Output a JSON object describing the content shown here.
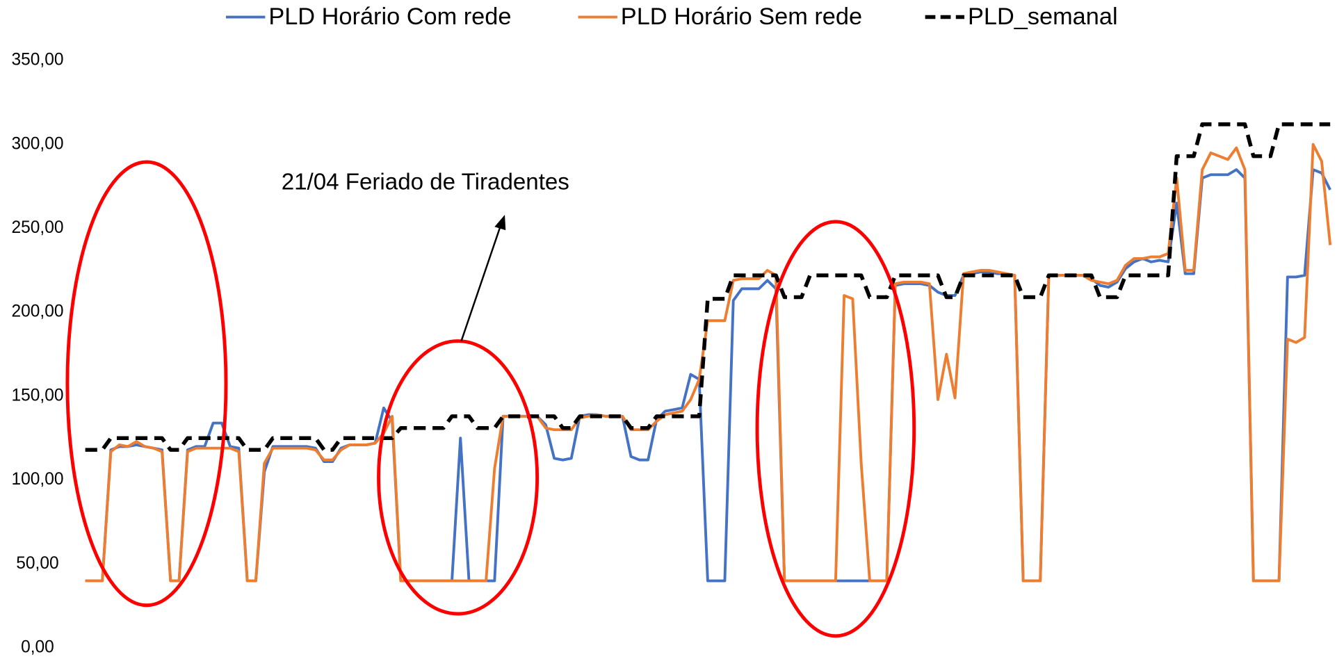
{
  "chart_data": {
    "type": "line",
    "annotation": "21/04 Feriado de Tiradentes",
    "ylim": [
      0,
      350
    ],
    "yticks": [
      {
        "value": 0,
        "label": "0,00"
      },
      {
        "value": 50,
        "label": "50,00"
      },
      {
        "value": 100,
        "label": "100,00"
      },
      {
        "value": 150,
        "label": "150,00"
      },
      {
        "value": 200,
        "label": "200,00"
      },
      {
        "value": 250,
        "label": "250,00"
      },
      {
        "value": 300,
        "label": "300,00"
      },
      {
        "value": 350,
        "label": "350,00"
      }
    ],
    "legend": "top",
    "series": [
      {
        "name": "PLD Horário Com rede",
        "color": "#4472c4",
        "dashed": false,
        "values": [
          40,
          40,
          40,
          118,
          120,
          120,
          121,
          120,
          119,
          118,
          40,
          40,
          118,
          120,
          120,
          134,
          134,
          120,
          119,
          40,
          40,
          105,
          120,
          120,
          120,
          120,
          120,
          119,
          111,
          111,
          119,
          121,
          121,
          121,
          122,
          143,
          135,
          40,
          40,
          40,
          40,
          40,
          40,
          40,
          125,
          40,
          40,
          40,
          40,
          138,
          138,
          138,
          138,
          138,
          133,
          113,
          112,
          113,
          138,
          139,
          139,
          138,
          138,
          138,
          114,
          112,
          112,
          136,
          141,
          142,
          143,
          163,
          160,
          40,
          40,
          40,
          207,
          214,
          214,
          214,
          219,
          214,
          40,
          40,
          40,
          40,
          40,
          40,
          40,
          40,
          40,
          40,
          40,
          40,
          40,
          216,
          217,
          217,
          217,
          216,
          212,
          210,
          210,
          222,
          223,
          224,
          224,
          223,
          223,
          222,
          40,
          40,
          40,
          222,
          222,
          222,
          222,
          222,
          220,
          216,
          215,
          218,
          226,
          230,
          232,
          230,
          231,
          230,
          265,
          223,
          223,
          280,
          282,
          282,
          282,
          285,
          280,
          40,
          40,
          40,
          40,
          221,
          221,
          222,
          285,
          283,
          273
        ]
      },
      {
        "name": "PLD Horário Sem rede",
        "color": "#ed7d31",
        "dashed": false,
        "values": [
          40,
          40,
          40,
          117,
          121,
          120,
          123,
          120,
          119,
          117,
          40,
          40,
          117,
          119,
          119,
          119,
          119,
          119,
          117,
          40,
          40,
          110,
          119,
          119,
          119,
          119,
          119,
          118,
          112,
          112,
          118,
          121,
          121,
          121,
          122,
          128,
          138,
          40,
          40,
          40,
          40,
          40,
          40,
          40,
          40,
          40,
          40,
          40,
          107,
          138,
          138,
          138,
          138,
          138,
          131,
          130,
          130,
          130,
          137,
          138,
          139,
          138,
          138,
          138,
          130,
          130,
          130,
          135,
          139,
          140,
          141,
          148,
          160,
          195,
          195,
          195,
          219,
          220,
          220,
          220,
          225,
          222,
          40,
          40,
          40,
          40,
          40,
          40,
          40,
          210,
          208,
          110,
          40,
          40,
          40,
          217,
          218,
          218,
          218,
          217,
          148,
          175,
          149,
          223,
          224,
          225,
          225,
          224,
          223,
          222,
          40,
          40,
          40,
          222,
          222,
          222,
          222,
          222,
          219,
          218,
          217,
          219,
          228,
          232,
          232,
          233,
          233,
          235,
          280,
          225,
          225,
          285,
          295,
          293,
          291,
          298,
          285,
          40,
          40,
          40,
          40,
          184,
          182,
          185,
          300,
          290,
          240
        ]
      },
      {
        "name": "PLD_semanal",
        "color": "#000000",
        "dashed": true,
        "values": [
          118,
          118,
          118,
          125,
          125,
          125,
          125,
          125,
          125,
          125,
          118,
          118,
          125,
          125,
          125,
          125,
          125,
          125,
          125,
          118,
          118,
          118,
          125,
          125,
          125,
          125,
          125,
          125,
          118,
          118,
          125,
          125,
          125,
          125,
          125,
          125,
          125,
          131,
          131,
          131,
          131,
          131,
          131,
          138,
          138,
          138,
          131,
          131,
          131,
          138,
          138,
          138,
          138,
          138,
          138,
          138,
          131,
          131,
          138,
          138,
          138,
          138,
          138,
          138,
          131,
          131,
          131,
          138,
          138,
          138,
          138,
          138,
          138,
          208,
          208,
          208,
          222,
          222,
          222,
          222,
          222,
          222,
          209,
          209,
          209,
          222,
          222,
          222,
          222,
          222,
          222,
          222,
          209,
          209,
          209,
          222,
          222,
          222,
          222,
          222,
          222,
          209,
          209,
          222,
          222,
          222,
          222,
          222,
          222,
          222,
          209,
          209,
          209,
          222,
          222,
          222,
          222,
          222,
          222,
          209,
          209,
          209,
          222,
          222,
          222,
          222,
          222,
          222,
          293,
          293,
          293,
          312,
          312,
          312,
          312,
          312,
          312,
          293,
          293,
          293,
          312,
          312,
          312,
          312,
          312,
          312,
          312
        ]
      }
    ]
  }
}
